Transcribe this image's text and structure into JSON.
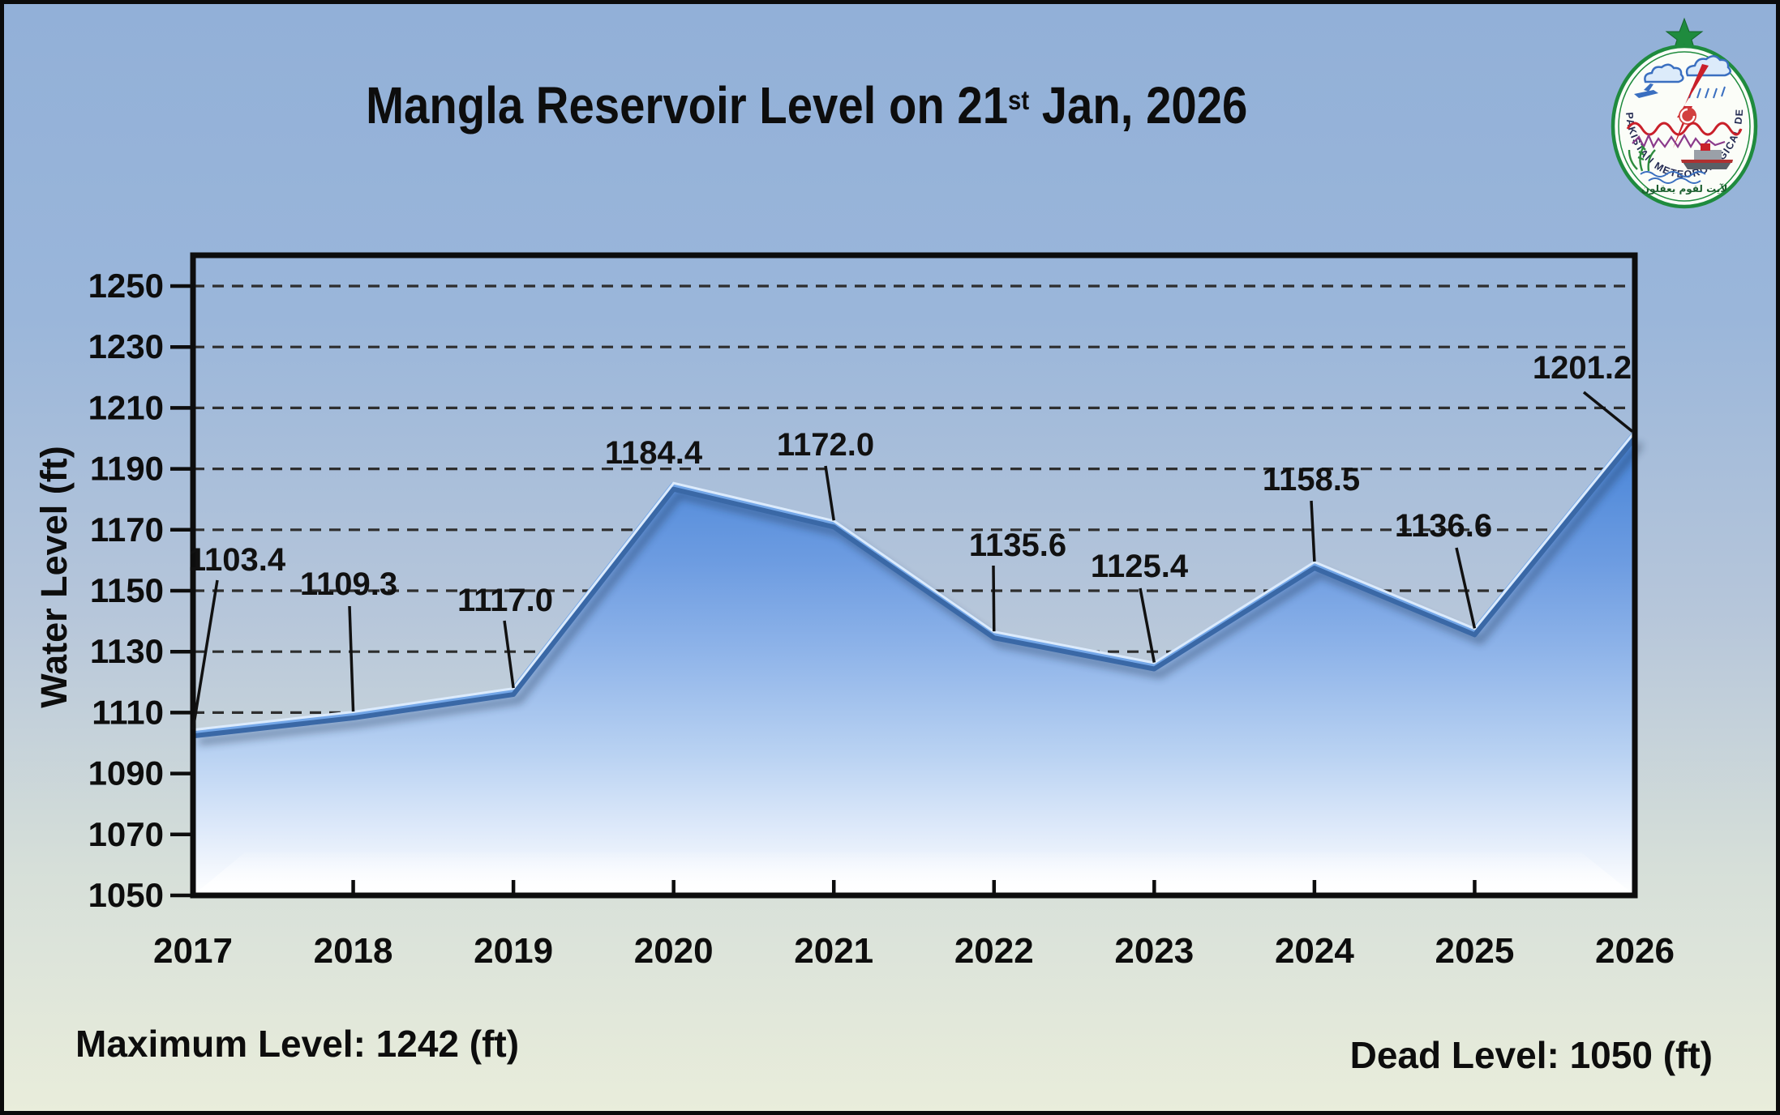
{
  "header": {
    "title_prefix": "Mangla Reservoir Level on 21",
    "title_sup": "st",
    "title_suffix": " Jan, 2026"
  },
  "logo": {
    "ring_text": "PAKISTAN METEOROLOGICAL DEPARTMENT",
    "arabic_text": "لآيت لقوم يعقلون"
  },
  "chart_data": {
    "type": "area",
    "title": "Mangla Reservoir Level on 21st Jan, 2026",
    "categories": [
      "2017",
      "2018",
      "2019",
      "2020",
      "2021",
      "2022",
      "2023",
      "2024",
      "2025",
      "2026"
    ],
    "values": [
      1103.4,
      1109.3,
      1117.0,
      1184.4,
      1172.0,
      1135.6,
      1125.4,
      1158.5,
      1136.6,
      1201.2
    ],
    "xlabel": "",
    "ylabel": "Water Level (ft)",
    "ylim": [
      1050,
      1250
    ],
    "ytick_step": 20,
    "grid": "horizontal dashed",
    "legend": "none",
    "value_labels_decimals": 1,
    "colors": {
      "area_top": "#2e6cc0",
      "area_mid": "#6d9ce1",
      "area_bottom": "#ffffff",
      "edge_line": "#74a7e8",
      "edge_shade": "#3a68a6",
      "edge_highlight": "#dcebfc",
      "gridline": "#2e2e2e",
      "axis": "#0d0d0d"
    }
  },
  "footer": {
    "max_level": "Maximum Level: 1242 (ft)",
    "dead_level": "Dead Level: 1050 (ft)"
  }
}
